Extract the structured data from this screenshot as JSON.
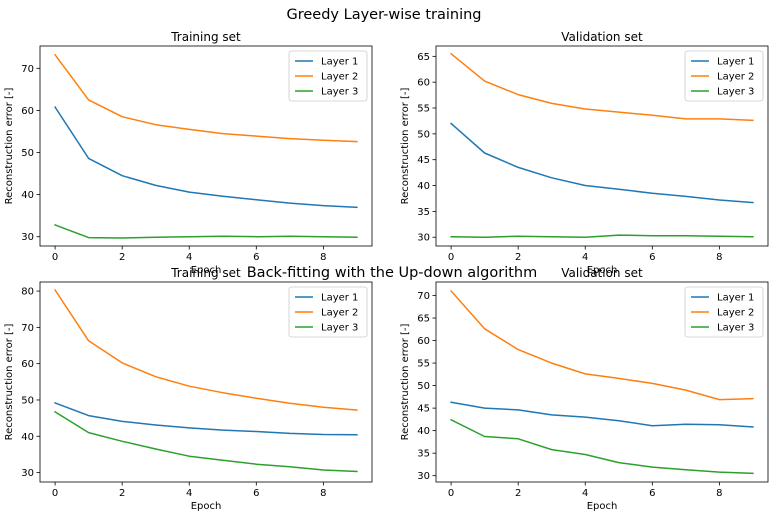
{
  "figure": {
    "suptitle_top": "Greedy Layer-wise training",
    "suptitle_bottom": "Back-fitting with the Up-down algorithm"
  },
  "colors": {
    "layer1": "#1f77b4",
    "layer2": "#ff7f0e",
    "layer3": "#2ca02c"
  },
  "chart_data": [
    {
      "type": "line",
      "title": "Training set",
      "xlabel": "Epoch",
      "ylabel": "Reconstruction error [-]",
      "xlim": [
        -0.45,
        9.45
      ],
      "ylim": [
        27.8,
        75.3
      ],
      "xticks": [
        0,
        2,
        4,
        6,
        8
      ],
      "yticks": [
        30,
        40,
        50,
        60,
        70
      ],
      "legend": "top-right",
      "x": [
        0,
        1,
        2,
        3,
        4,
        5,
        6,
        7,
        8,
        9
      ],
      "series": [
        {
          "name": "Layer 1",
          "color": "#1f77b4",
          "values": [
            60.8,
            48.6,
            44.5,
            42.2,
            40.6,
            39.6,
            38.8,
            38.0,
            37.4,
            37.0
          ]
        },
        {
          "name": "Layer 2",
          "color": "#ff7f0e",
          "values": [
            73.2,
            62.5,
            58.5,
            56.6,
            55.5,
            54.5,
            53.9,
            53.3,
            52.9,
            52.6
          ]
        },
        {
          "name": "Layer 3",
          "color": "#2ca02c",
          "values": [
            32.8,
            29.8,
            29.7,
            29.9,
            30.0,
            30.1,
            30.0,
            30.1,
            30.0,
            29.9
          ]
        }
      ]
    },
    {
      "type": "line",
      "title": "Validation set",
      "xlabel": "Epoch",
      "ylabel": "Reconstruction error [-]",
      "xlim": [
        -0.45,
        9.45
      ],
      "ylim": [
        28.3,
        67.0
      ],
      "xticks": [
        0,
        2,
        4,
        6,
        8
      ],
      "yticks": [
        30,
        35,
        40,
        45,
        50,
        55,
        60,
        65
      ],
      "legend": "top-right",
      "x": [
        0,
        1,
        2,
        3,
        4,
        5,
        6,
        7,
        8,
        9
      ],
      "series": [
        {
          "name": "Layer 1",
          "color": "#1f77b4",
          "values": [
            52.0,
            46.3,
            43.5,
            41.5,
            40.0,
            39.3,
            38.5,
            37.9,
            37.2,
            36.7
          ]
        },
        {
          "name": "Layer 2",
          "color": "#ff7f0e",
          "values": [
            65.5,
            60.2,
            57.6,
            55.9,
            54.8,
            54.2,
            53.6,
            52.9,
            52.9,
            52.6
          ]
        },
        {
          "name": "Layer 3",
          "color": "#2ca02c",
          "values": [
            30.1,
            30.0,
            30.2,
            30.1,
            30.0,
            30.4,
            30.3,
            30.3,
            30.2,
            30.1
          ]
        }
      ]
    },
    {
      "type": "line",
      "title": "Training set",
      "xlabel": "Epoch",
      "ylabel": "Reconstruction error [-]",
      "xlim": [
        -0.45,
        9.45
      ],
      "ylim": [
        27.4,
        82.5
      ],
      "xticks": [
        0,
        2,
        4,
        6,
        8
      ],
      "yticks": [
        30,
        40,
        50,
        60,
        70,
        80
      ],
      "legend": "top-right",
      "x": [
        0,
        1,
        2,
        3,
        4,
        5,
        6,
        7,
        8,
        9
      ],
      "series": [
        {
          "name": "Layer 1",
          "color": "#1f77b4",
          "values": [
            49.2,
            45.7,
            44.1,
            43.1,
            42.3,
            41.7,
            41.3,
            40.8,
            40.5,
            40.4
          ]
        },
        {
          "name": "Layer 2",
          "color": "#ff7f0e",
          "values": [
            80.3,
            66.3,
            60.2,
            56.4,
            53.8,
            52.0,
            50.5,
            49.1,
            48.0,
            47.2
          ]
        },
        {
          "name": "Layer 3",
          "color": "#2ca02c",
          "values": [
            46.7,
            41.0,
            38.6,
            36.5,
            34.5,
            33.4,
            32.3,
            31.6,
            30.7,
            30.3
          ]
        }
      ]
    },
    {
      "type": "line",
      "title": "Validation set",
      "xlabel": "Epoch",
      "ylabel": "Reconstruction error [-]",
      "xlim": [
        -0.45,
        9.45
      ],
      "ylim": [
        28.6,
        73.0
      ],
      "xticks": [
        0,
        2,
        4,
        6,
        8
      ],
      "yticks": [
        30,
        35,
        40,
        45,
        50,
        55,
        60,
        65,
        70
      ],
      "legend": "top-right",
      "x": [
        0,
        1,
        2,
        3,
        4,
        5,
        6,
        7,
        8,
        9
      ],
      "series": [
        {
          "name": "Layer 1",
          "color": "#1f77b4",
          "values": [
            46.3,
            45.0,
            44.6,
            43.5,
            43.0,
            42.2,
            41.1,
            41.4,
            41.3,
            40.8
          ]
        },
        {
          "name": "Layer 2",
          "color": "#ff7f0e",
          "values": [
            71.0,
            62.6,
            58.0,
            55.0,
            52.6,
            51.6,
            50.5,
            49.0,
            46.9,
            47.1
          ]
        },
        {
          "name": "Layer 3",
          "color": "#2ca02c",
          "values": [
            42.4,
            38.7,
            38.2,
            35.8,
            34.7,
            32.9,
            31.9,
            31.3,
            30.8,
            30.5
          ]
        }
      ]
    }
  ]
}
